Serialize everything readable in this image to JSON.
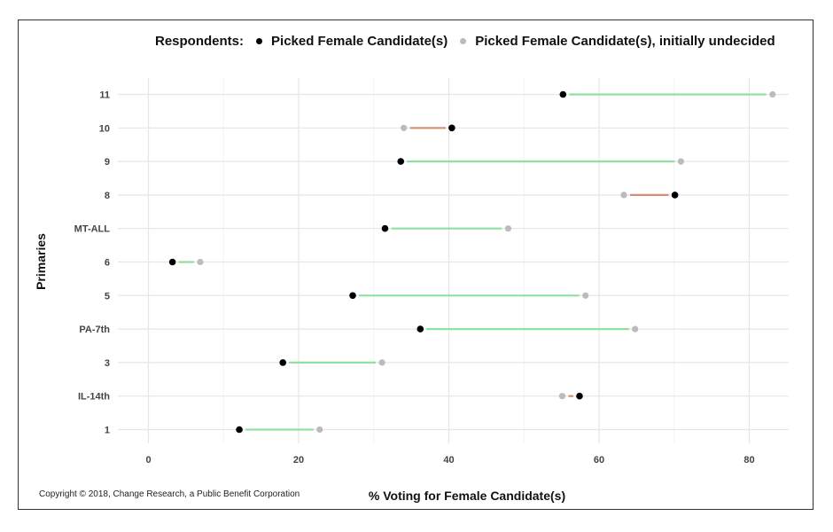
{
  "chart_data": {
    "type": "dumbbell",
    "title": "",
    "xlabel": "% Voting for Female Candidate(s)",
    "ylabel": "Primaries",
    "xlim": [
      -4,
      85
    ],
    "x_ticks": [
      0,
      20,
      40,
      60,
      80
    ],
    "grid": true,
    "legend": {
      "placement": "top",
      "title": "Respondents:",
      "entries": [
        {
          "label": "Picked Female Candidate(s)",
          "color": "#000000"
        },
        {
          "label": "Picked Female Candidate(s), initially undecided",
          "color": "#bbbbbb"
        }
      ]
    },
    "categories": [
      "11",
      "10",
      "9",
      "8",
      "MT-ALL",
      "6",
      "5",
      "PA-7th",
      "3",
      "IL-14th",
      "1"
    ],
    "series": [
      {
        "name": "Picked Female Candidate(s)",
        "values": [
          55.2,
          40.4,
          33.6,
          70.1,
          31.5,
          3.2,
          27.2,
          36.2,
          17.9,
          57.4,
          12.1
        ]
      },
      {
        "name": "Picked Female Candidate(s), initially undecided",
        "values": [
          83.1,
          34.0,
          70.9,
          63.3,
          47.9,
          6.9,
          58.2,
          64.8,
          31.1,
          55.1,
          22.8
        ]
      }
    ],
    "segment_colors": {
      "increase": "#8ee0a4",
      "decrease": "#d98e72"
    }
  },
  "footer": {
    "copyright": "Copyright © 2018, Change Research, a Public Benefit Corporation"
  }
}
